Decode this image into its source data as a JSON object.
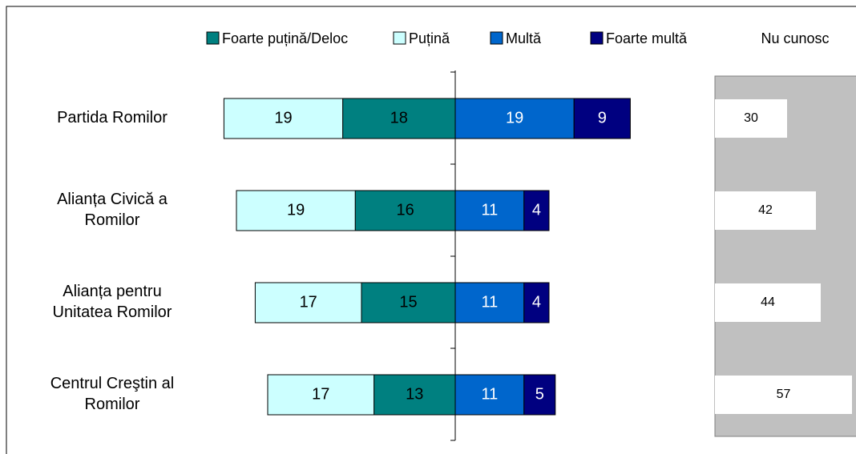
{
  "chart_data": {
    "type": "diverging_bar",
    "categories": [
      [
        "Partida Romilor"
      ],
      [
        "Alianța Civică a",
        "Romilor"
      ],
      [
        "Alianța pentru",
        "Unitatea Romilor"
      ],
      [
        "Centrul Creştin al",
        "Romilor"
      ]
    ],
    "series": [
      {
        "name": "Foarte puțină/Deloc",
        "color": "#008080",
        "text_color": "#000000",
        "side": "left",
        "values": [
          18,
          16,
          15,
          13
        ]
      },
      {
        "name": "Puțină",
        "color": "#ccffff",
        "text_color": "#000000",
        "side": "left",
        "values": [
          19,
          19,
          17,
          17
        ]
      },
      {
        "name": "Multă",
        "color": "#0066cc",
        "text_color": "#ffffff",
        "side": "right",
        "values": [
          19,
          11,
          11,
          11
        ]
      },
      {
        "name": "Foarte multă",
        "color": "#000080",
        "text_color": "#ffffff",
        "side": "right",
        "values": [
          9,
          4,
          4,
          5
        ]
      }
    ],
    "dont_know": {
      "title": "Nu cunosc",
      "color": "#ffffff",
      "background": "#c0c0c0",
      "values": [
        30,
        42,
        44,
        57
      ]
    },
    "legend": "top"
  }
}
